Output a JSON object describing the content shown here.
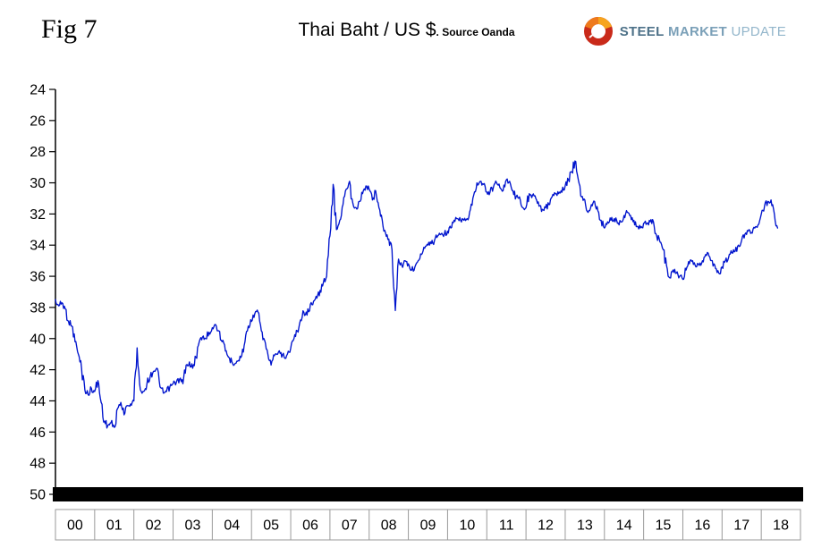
{
  "header": {
    "figure_label": "Fig 7",
    "title": "Thai Baht / US $",
    "title_suffix": ". Source Oanda",
    "logo": {
      "word1": "STEEL",
      "word2": "MARKET",
      "word3": "UPDATE"
    }
  },
  "chart_data": {
    "type": "line",
    "title": "Thai Baht / US $",
    "source": "Oanda",
    "series_name": "Thai Baht per US Dollar",
    "line_color": "#0014cd",
    "grid": false,
    "legend": false,
    "y_axis": {
      "min": 24,
      "max": 50,
      "inverted_top_to_bottom": true,
      "ticks": [
        24,
        26,
        28,
        30,
        32,
        34,
        36,
        38,
        40,
        42,
        44,
        46,
        48,
        50
      ]
    },
    "x_axis": {
      "start_year": 2000,
      "labels": [
        "00",
        "01",
        "02",
        "03",
        "04",
        "05",
        "06",
        "07",
        "08",
        "09",
        "10",
        "11",
        "12",
        "13",
        "14",
        "15",
        "16",
        "17",
        "18"
      ]
    },
    "frequency": "monthly",
    "start_month": "2000-01",
    "values": [
      37.5,
      37.9,
      37.7,
      38.1,
      38.9,
      39.2,
      40.2,
      41.0,
      41.9,
      43.3,
      43.6,
      43.2,
      43.4,
      42.7,
      44.1,
      45.3,
      45.6,
      45.4,
      45.7,
      44.5,
      44.1,
      44.9,
      44.3,
      44.2,
      44.0,
      40.6,
      43.3,
      43.4,
      42.9,
      42.4,
      42.1,
      41.9,
      43.1,
      43.5,
      43.4,
      43.1,
      42.9,
      42.8,
      42.6,
      42.9,
      41.7,
      41.5,
      41.9,
      41.2,
      40.2,
      39.9,
      40.0,
      39.6,
      39.3,
      39.1,
      39.5,
      40.2,
      40.8,
      41.2,
      41.5,
      41.6,
      41.4,
      41.1,
      40.2,
      39.2,
      38.9,
      38.4,
      38.3,
      39.5,
      40.1,
      41.0,
      41.7,
      41.1,
      41.0,
      40.9,
      41.2,
      41.0,
      40.6,
      40.0,
      39.5,
      38.8,
      38.3,
      38.5,
      37.8,
      37.6,
      37.4,
      36.9,
      36.4,
      36.0,
      33.4,
      30.1,
      33.0,
      32.4,
      31.4,
      30.4,
      29.9,
      31.3,
      31.6,
      31.2,
      30.7,
      30.2,
      30.4,
      31.1,
      30.5,
      31.6,
      32.4,
      33.2,
      33.6,
      34.3,
      38.2,
      34.9,
      35.3,
      35.0,
      35.2,
      35.6,
      35.4,
      35.0,
      34.6,
      34.2,
      34.0,
      33.9,
      33.7,
      33.4,
      33.3,
      33.3,
      33.1,
      32.9,
      32.4,
      32.3,
      32.4,
      32.4,
      32.3,
      31.7,
      30.8,
      30.0,
      29.9,
      30.1,
      30.6,
      30.6,
      30.3,
      30.0,
      30.3,
      30.5,
      29.8,
      29.9,
      30.5,
      30.9,
      30.9,
      31.6,
      31.6,
      30.7,
      30.8,
      31.0,
      31.5,
      31.7,
      31.6,
      31.4,
      30.9,
      30.7,
      30.7,
      30.6,
      30.2,
      29.8,
      29.3,
      28.6,
      29.8,
      30.9,
      31.1,
      31.9,
      31.4,
      31.2,
      31.8,
      32.4,
      32.9,
      32.5,
      32.4,
      32.3,
      32.6,
      32.5,
      32.1,
      31.9,
      32.1,
      32.4,
      32.8,
      32.9,
      32.6,
      32.6,
      32.5,
      32.5,
      33.4,
      33.8,
      34.3,
      35.3,
      36.1,
      35.6,
      35.8,
      36.0,
      36.2,
      35.6,
      35.2,
      35.0,
      35.4,
      35.3,
      35.0,
      34.6,
      34.7,
      35.0,
      35.5,
      35.8,
      35.4,
      35.0,
      34.8,
      34.5,
      34.4,
      34.0,
      33.7,
      33.3,
      33.1,
      33.2,
      32.9,
      32.7,
      32.0,
      31.5,
      31.2,
      31.1,
      32.0,
      32.9
    ]
  }
}
